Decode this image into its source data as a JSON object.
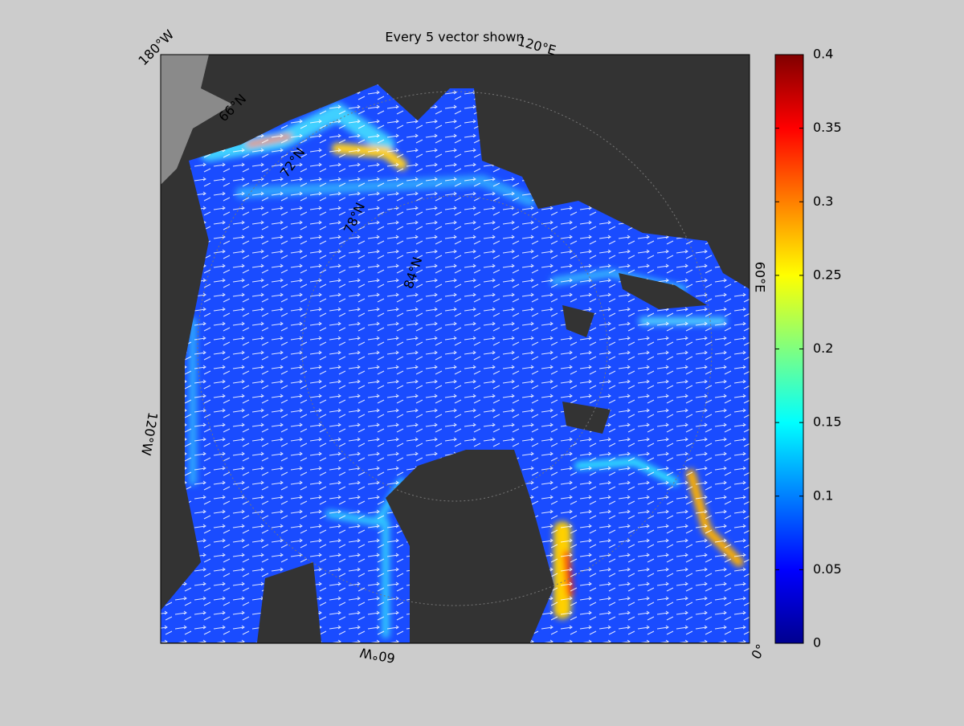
{
  "title": "Every 5 vector shown",
  "map": {
    "meridian_labels": [
      "180°W",
      "120°E",
      "60°E",
      "0°",
      "60°W",
      "120°W"
    ],
    "parallel_labels": [
      "66°N",
      "72°N",
      "78°N",
      "84°N"
    ]
  },
  "colorbar": {
    "lim": [
      0,
      0.4
    ],
    "ticks": [
      0,
      0.05,
      0.1,
      0.15,
      0.2,
      0.25,
      0.3,
      0.35,
      0.4
    ]
  }
}
